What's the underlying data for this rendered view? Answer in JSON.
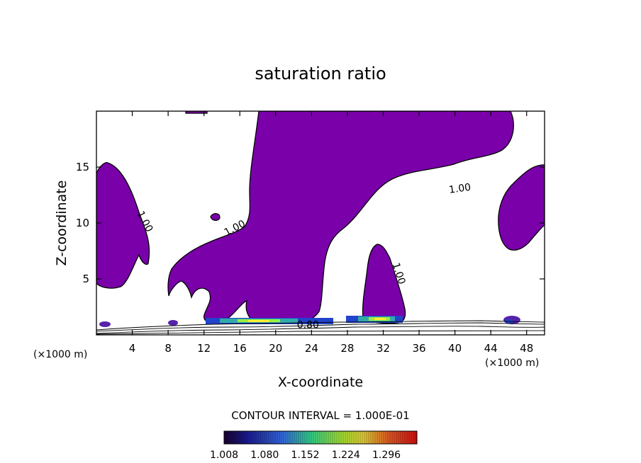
{
  "chart_data": {
    "type": "contour",
    "title": "saturation ratio",
    "xlabel": "X-coordinate",
    "ylabel": "Z-coordinate",
    "x_unit": "(×1000 m)",
    "y_unit": "(×1000 m)",
    "xlim": [
      0,
      50
    ],
    "ylim": [
      0,
      20
    ],
    "x_ticks": [
      4,
      8,
      12,
      16,
      20,
      24,
      28,
      32,
      36,
      40,
      44,
      48
    ],
    "y_ticks": [
      5,
      10,
      15
    ],
    "fill_threshold": 1.0,
    "fill_color": "#7a00aa",
    "contour_labels": [
      {
        "text": "1.00",
        "x": 5.1,
        "z": 10.0,
        "angle": 62
      },
      {
        "text": "1.00",
        "x": 15.6,
        "z": 9.3,
        "angle": -28
      },
      {
        "text": "1.00",
        "x": 40.6,
        "z": 12.8,
        "angle": -8
      },
      {
        "text": "1.00",
        "x": 33.4,
        "z": 5.4,
        "angle": 72
      },
      {
        "text": "0.80",
        "x": 23.6,
        "z": 0.6,
        "angle": 0
      }
    ],
    "contour_interval_text": "CONTOUR INTERVAL = 1.000E-01",
    "colorbar": {
      "ticks": [
        "1.008",
        "1.080",
        "1.152",
        "1.224",
        "1.296"
      ],
      "min": 1.008,
      "max": 1.35
    }
  }
}
